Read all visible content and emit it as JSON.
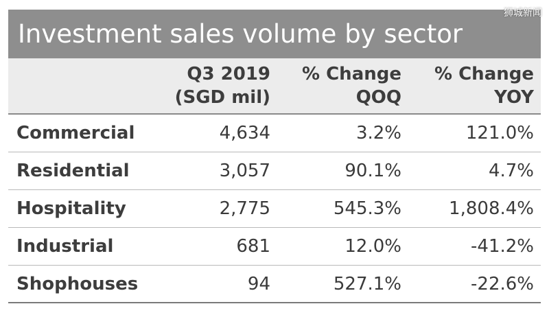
{
  "title": "Investment sales volume by sector",
  "watermark": "狮城新闻",
  "columns": [
    {
      "line1": "Q3 2019",
      "line2": "(SGD mil)"
    },
    {
      "line1": "% Change",
      "line2": "QOQ"
    },
    {
      "line1": "% Change",
      "line2": "YOY"
    }
  ],
  "rows": [
    {
      "sector": "Commercial",
      "volume": "4,634",
      "qoq": "3.2%",
      "yoy": "121.0%"
    },
    {
      "sector": "Residential",
      "volume": "3,057",
      "qoq": "90.1%",
      "yoy": "4.7%"
    },
    {
      "sector": "Hospitality",
      "volume": "2,775",
      "qoq": "545.3%",
      "yoy": "1,808.4%"
    },
    {
      "sector": "Industrial",
      "volume": "681",
      "qoq": "12.0%",
      "yoy": "-41.2%"
    },
    {
      "sector": "Shophouses",
      "volume": "94",
      "qoq": "527.1%",
      "yoy": "-22.6%"
    }
  ],
  "colors": {
    "title_bar": "#8e8e8e",
    "header_bg": "#ececec",
    "text": "#3a3a3a"
  }
}
